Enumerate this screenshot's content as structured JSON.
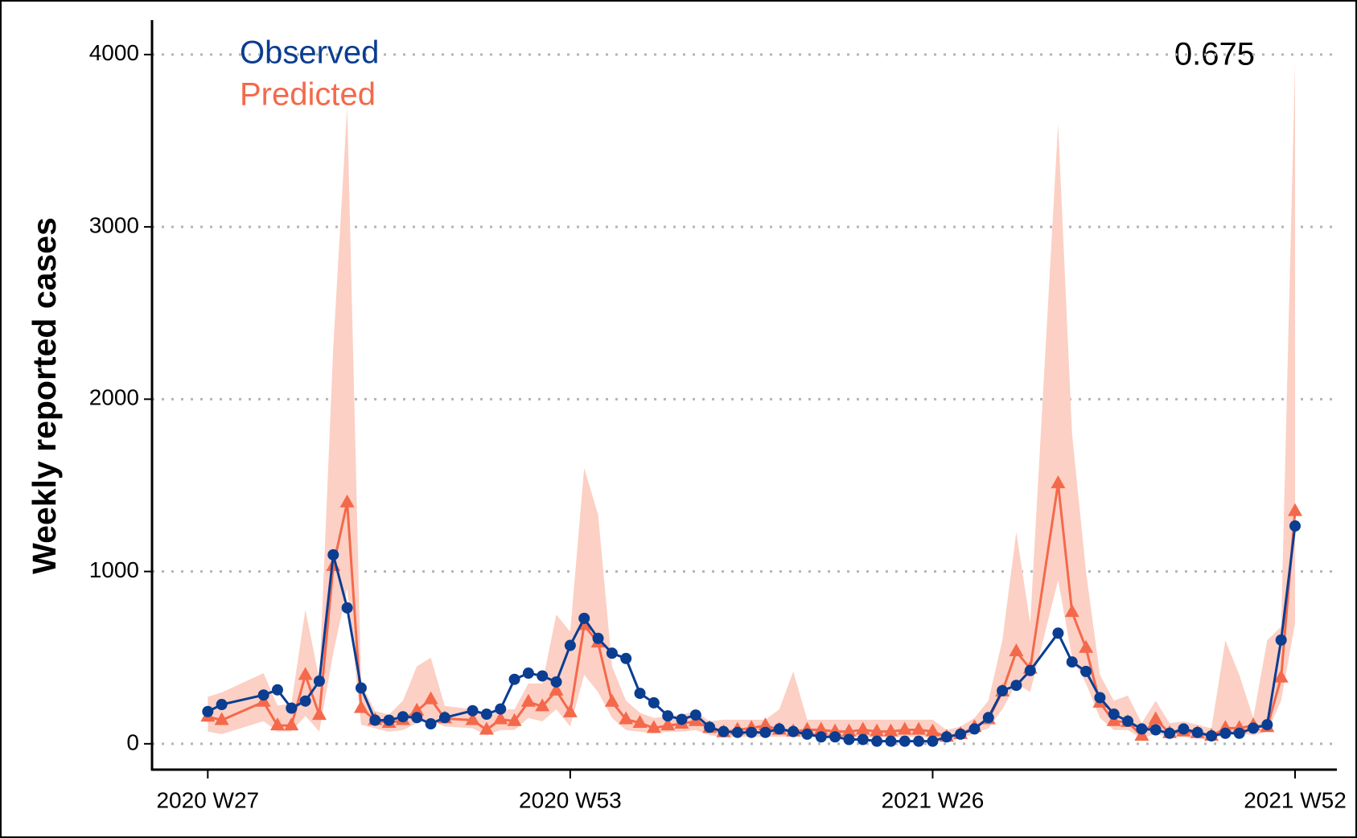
{
  "chart_data": {
    "type": "line",
    "y_label": "Weekly reported cases",
    "annotation": "0.675",
    "ylim": [
      -150,
      4200
    ],
    "yticks": [
      0,
      1000,
      2000,
      3000,
      4000
    ],
    "xlim": [
      -4,
      81
    ],
    "xticks": [
      {
        "value": 0,
        "label": "2020 W27"
      },
      {
        "value": 26,
        "label": "2020 W53"
      },
      {
        "value": 52,
        "label": "2021 W26"
      },
      {
        "value": 78,
        "label": "2021 W52"
      }
    ],
    "grid": true,
    "legend": "top-left",
    "x": [
      0,
      1,
      4,
      5,
      6,
      7,
      8,
      9,
      10,
      11,
      12,
      13,
      14,
      15,
      16,
      17,
      19,
      20,
      21,
      22,
      23,
      24,
      25,
      26,
      27,
      28,
      29,
      30,
      31,
      32,
      33,
      34,
      35,
      36,
      37,
      38,
      39,
      40,
      41,
      42,
      43,
      44,
      45,
      46,
      47,
      48,
      49,
      50,
      51,
      52,
      53,
      54,
      55,
      56,
      57,
      58,
      59,
      61,
      62,
      63,
      64,
      65,
      66,
      67,
      68,
      69,
      70,
      71,
      72,
      73,
      74,
      75,
      76,
      77,
      78
    ],
    "series": [
      {
        "name": "Observed",
        "color": "#0b3d91",
        "marker": "circle",
        "values": [
          187,
          228,
          283,
          313,
          207,
          248,
          364,
          1097,
          789,
          324,
          137,
          137,
          157,
          152,
          116,
          152,
          192,
          172,
          202,
          374,
          410,
          394,
          359,
          571,
          728,
          612,
          526,
          495,
          293,
          238,
          162,
          142,
          167,
          96,
          71,
          66,
          66,
          66,
          86,
          71,
          56,
          40,
          40,
          25,
          25,
          15,
          15,
          15,
          15,
          15,
          40,
          56,
          86,
          152,
          308,
          339,
          425,
          642,
          475,
          420,
          268,
          172,
          131,
          86,
          81,
          61,
          86,
          66,
          46,
          61,
          61,
          91,
          111,
          602,
          1264
        ]
      },
      {
        "name": "Predicted",
        "color": "#f4694b",
        "marker": "triangle",
        "band_color": "#fcd0c4",
        "values": [
          157,
          137,
          243,
          106,
          106,
          399,
          167,
          1031,
          1400,
          207,
          137,
          121,
          137,
          192,
          258,
          147,
          137,
          81,
          142,
          131,
          243,
          217,
          308,
          182,
          688,
          587,
          243,
          142,
          121,
          91,
          106,
          116,
          131,
          91,
          66,
          81,
          91,
          106,
          81,
          71,
          81,
          81,
          71,
          71,
          81,
          71,
          71,
          81,
          81,
          71,
          40,
          56,
          96,
          142,
          303,
          536,
          435,
          1511,
          764,
          556,
          238,
          131,
          126,
          46,
          142,
          61,
          71,
          61,
          46,
          91,
          91,
          106,
          96,
          384,
          1350
        ],
        "lower": [
          71,
          56,
          131,
          71,
          71,
          162,
          71,
          526,
          900,
          110,
          90,
          70,
          80,
          120,
          140,
          100,
          90,
          50,
          80,
          80,
          150,
          130,
          200,
          100,
          400,
          300,
          150,
          80,
          70,
          60,
          70,
          70,
          80,
          50,
          40,
          40,
          40,
          40,
          40,
          40,
          40,
          40,
          40,
          40,
          40,
          40,
          40,
          40,
          40,
          40,
          20,
          30,
          60,
          90,
          200,
          350,
          300,
          950,
          500,
          350,
          150,
          80,
          80,
          30,
          60,
          40,
          40,
          30,
          20,
          60,
          60,
          50,
          70,
          250,
          700
        ],
        "upper": [
          273,
          298,
          410,
          222,
          233,
          779,
          374,
          2300,
          3700,
          350,
          190,
          170,
          250,
          450,
          500,
          220,
          200,
          150,
          200,
          200,
          350,
          350,
          750,
          650,
          1600,
          1330,
          450,
          250,
          180,
          150,
          160,
          170,
          190,
          130,
          140,
          140,
          140,
          140,
          200,
          420,
          140,
          140,
          140,
          140,
          140,
          140,
          140,
          140,
          140,
          140,
          80,
          100,
          150,
          250,
          600,
          1230,
          700,
          3600,
          1800,
          1000,
          400,
          250,
          280,
          120,
          250,
          120,
          130,
          110,
          90,
          600,
          400,
          150,
          600,
          680,
          3950
        ]
      }
    ]
  }
}
